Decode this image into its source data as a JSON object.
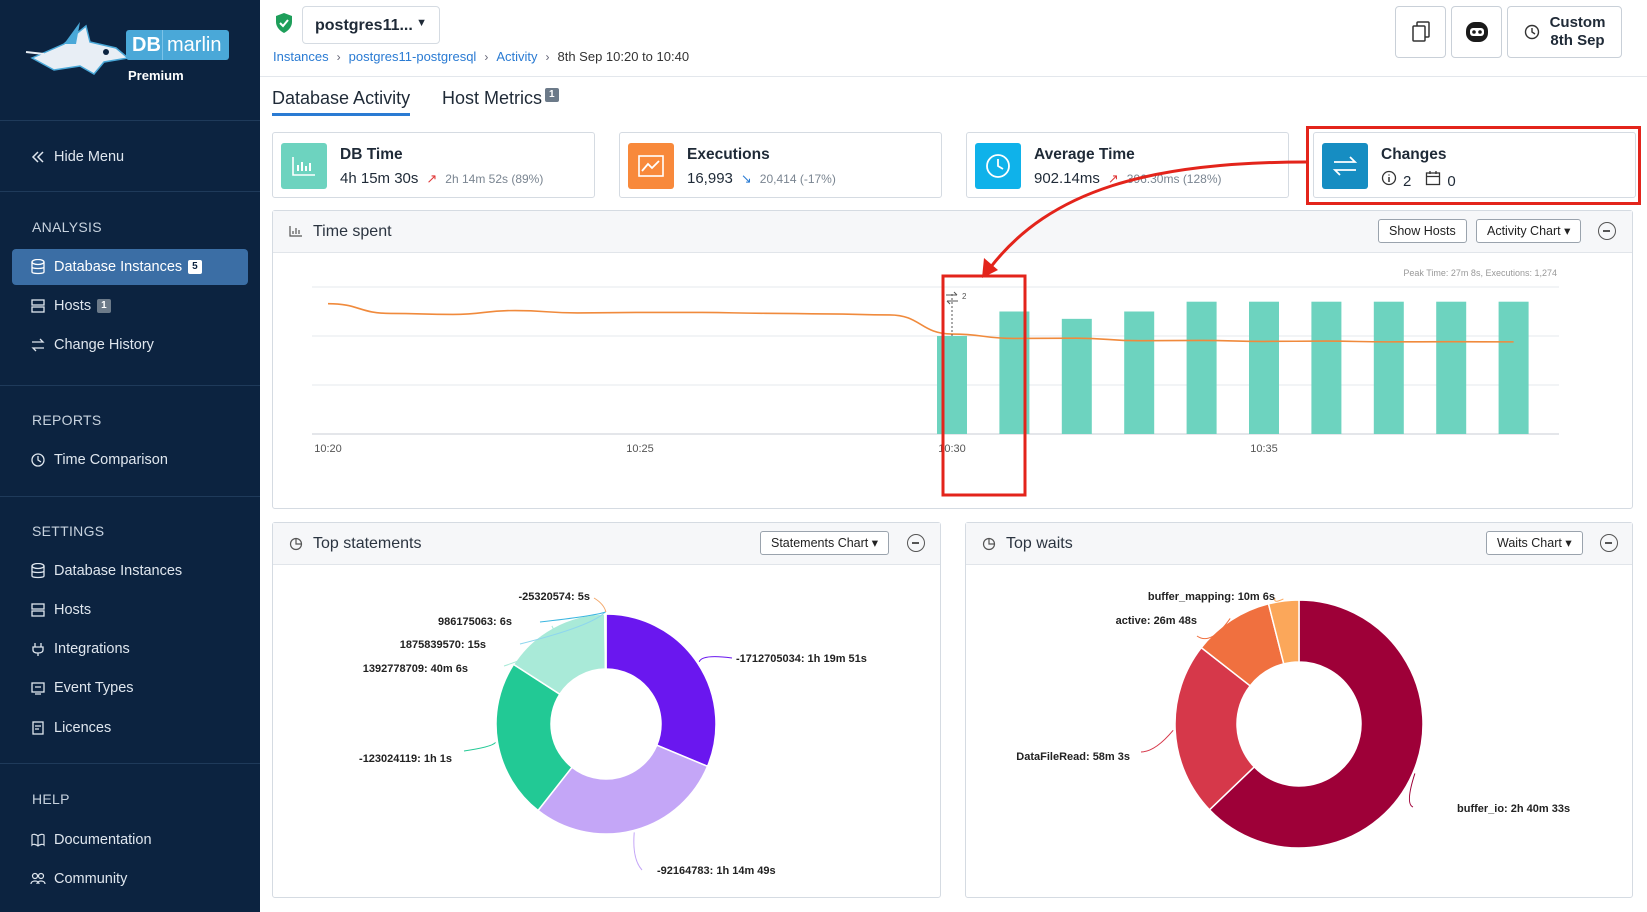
{
  "brand": {
    "db": "DB",
    "marlin": "marlin",
    "tier": "Premium"
  },
  "sidebar": {
    "hide_menu": "Hide Menu",
    "analysis_heading": "ANALYSIS",
    "analysis": [
      {
        "label": "Database Instances",
        "badge": "5",
        "icon": "database-icon"
      },
      {
        "label": "Hosts",
        "badge": "1",
        "icon": "server-icon"
      },
      {
        "label": "Change History",
        "icon": "arrows-exchange-icon"
      }
    ],
    "reports_heading": "REPORTS",
    "reports": [
      {
        "label": "Time Comparison",
        "icon": "clock-icon"
      }
    ],
    "settings_heading": "SETTINGS",
    "settings": [
      {
        "label": "Database Instances",
        "icon": "database-icon"
      },
      {
        "label": "Hosts",
        "icon": "server-icon"
      },
      {
        "label": "Integrations",
        "icon": "plug-icon"
      },
      {
        "label": "Event Types",
        "icon": "event-types-icon"
      },
      {
        "label": "Licences",
        "icon": "licence-icon"
      }
    ],
    "help_heading": "HELP",
    "help": [
      {
        "label": "Documentation",
        "icon": "book-icon"
      },
      {
        "label": "Community",
        "icon": "users-icon"
      }
    ]
  },
  "header": {
    "instance_name": "postgres11...",
    "breadcrumb": {
      "instances": "Instances",
      "instance": "postgres11-postgresql",
      "activity": "Activity",
      "current": "8th Sep 10:20 to 10:40"
    },
    "custom_line1": "Custom",
    "custom_line2": "8th Sep"
  },
  "tabs": {
    "db_activity": "Database Activity",
    "host_metrics": "Host Metrics",
    "host_metrics_badge": "1"
  },
  "cards": {
    "db_time": {
      "title": "DB Time",
      "value": "4h 15m 30s",
      "compare": "2h 14m 52s (89%)"
    },
    "executions": {
      "title": "Executions",
      "value": "16,993",
      "compare": "20,414 (-17%)"
    },
    "avg_time": {
      "title": "Average Time",
      "value": "902.14ms",
      "compare": "396.30ms (128%)"
    },
    "changes": {
      "title": "Changes",
      "info_count": "2",
      "calendar_count": "0"
    }
  },
  "time_spent": {
    "title": "Time spent",
    "show_hosts": "Show Hosts",
    "chart_menu": "Activity Chart",
    "peak": "Peak Time: 27m 8s, Executions: 1,274",
    "marker_label": "2"
  },
  "top_statements": {
    "title": "Top statements",
    "chart_menu": "Statements Chart"
  },
  "top_waits": {
    "title": "Top waits",
    "chart_menu": "Waits Chart"
  },
  "chart_data": [
    {
      "type": "bar",
      "title": "Time spent",
      "x_ticks": [
        "10:20",
        "10:25",
        "10:30",
        "10:35"
      ],
      "bars": {
        "x": [
          "10:30",
          "10:31",
          "10:32",
          "10:33",
          "10:34",
          "10:35",
          "10:36",
          "10:37",
          "10:38",
          "10:39"
        ],
        "values": [
          20,
          25,
          23.5,
          25,
          27,
          27,
          27,
          27,
          27,
          27
        ],
        "color": "#6dd3bf"
      },
      "line": {
        "x": [
          "10:20",
          "10:21",
          "10:22",
          "10:23",
          "10:24",
          "10:25",
          "10:26",
          "10:27",
          "10:28",
          "10:29",
          "10:30",
          "10:31",
          "10:32",
          "10:33",
          "10:34",
          "10:35",
          "10:36",
          "10:37",
          "10:38",
          "10:39"
        ],
        "values": [
          1330,
          1230,
          1220,
          1260,
          1235,
          1240,
          1240,
          1232,
          1225,
          1215,
          1020,
          975,
          978,
          952,
          955,
          945,
          948,
          940,
          942,
          940
        ],
        "color": "#f08a3c"
      },
      "bar_ylim": [
        0,
        30
      ],
      "line_ylim": [
        0,
        1500
      ],
      "grid": true
    },
    {
      "type": "pie",
      "title": "Top statements",
      "labels": [
        "-1712705034: 1h 19m 51s",
        "-92164783: 1h 14m 49s",
        "-123024119: 1h 1s",
        "1392778709: 40m 6s",
        "1875839570: 15s",
        "986175063: 6s",
        "-25320574: 5s"
      ],
      "values": [
        4791,
        4489,
        3601,
        2406,
        15,
        6,
        5
      ],
      "colors": [
        "#6a17ef",
        "#c4a6f7",
        "#22c995",
        "#a9ead8",
        "#8ed6ee",
        "#3bb6e0",
        "#f3a86b"
      ]
    },
    {
      "type": "pie",
      "title": "Top waits",
      "labels": [
        "buffer_io: 2h 40m 33s",
        "DataFileRead: 58m 3s",
        "active: 26m 48s",
        "buffer_mapping: 10m 6s"
      ],
      "values": [
        9633,
        3483,
        1608,
        606
      ],
      "colors": [
        "#9e0038",
        "#d6384a",
        "#f0703f",
        "#fba75a"
      ]
    }
  ]
}
